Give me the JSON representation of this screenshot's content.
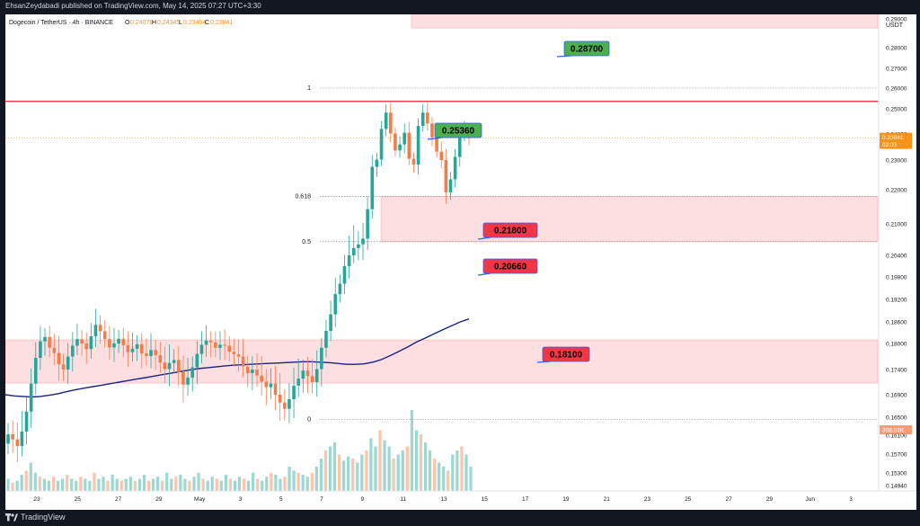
{
  "header": {
    "publisher": "EhsanZeydabadi published on TradingView.com, May 14, 2025 07:27 UTC+3:30"
  },
  "legend": {
    "symbol": "Dogecoin / TetherUS · 4h · BINANCE",
    "o_label": "O",
    "o_value": "0.24078",
    "h_label": "H",
    "h_value": "0.24345",
    "l_label": "L",
    "l_value": "0.23404",
    "c_label": "C",
    "c_value": "0.23841"
  },
  "footer": {
    "brand": "TradingView"
  },
  "chart_data": {
    "type": "candlestick",
    "currency": "USDT",
    "ylim": [
      0.1494,
      0.2988
    ],
    "y_ticks": [
      "0.29000",
      "0.28000",
      "0.27000",
      "0.26000",
      "0.25000",
      "0.24000",
      "0.23000",
      "0.22000",
      "0.21000",
      "0.20400",
      "0.19800",
      "0.19200",
      "0.18600",
      "0.18000",
      "0.17400",
      "0.16900",
      "0.16500",
      "0.16100",
      "0.15700",
      "0.15300",
      "0.14940"
    ],
    "x_ticks": [
      "23",
      "25",
      "27",
      "29",
      "May",
      "3",
      "5",
      "7",
      "9",
      "11",
      "13",
      "15",
      "17",
      "19",
      "21",
      "23",
      "25",
      "27",
      "29",
      "Jun",
      "3"
    ],
    "last_price": "0.23841",
    "countdown": "02:03",
    "volume_label": "308.84K",
    "fib_levels": [
      {
        "label": "1",
        "value": 0.26
      },
      {
        "label": "0.618",
        "value": 0.218
      },
      {
        "label": "0.5",
        "value": 0.2066
      },
      {
        "label": "0",
        "value": 0.1645
      }
    ],
    "horizontal_line": 0.2536,
    "zones": [
      {
        "from": 0.2868,
        "to": 0.2936
      },
      {
        "from": 0.2066,
        "to": 0.218
      },
      {
        "from": 0.1713,
        "to": 0.181
      }
    ],
    "callouts": [
      {
        "text": "0.28700",
        "color": "#4caf50"
      },
      {
        "text": "0.25360",
        "color": "#4caf50"
      },
      {
        "text": "0.21800",
        "color": "#f23645"
      },
      {
        "text": "0.20660",
        "color": "#f23645"
      },
      {
        "text": "0.18100",
        "color": "#f23645"
      }
    ],
    "candles_close": [
      0.1612,
      0.1601,
      0.1587,
      0.1618,
      0.166,
      0.1712,
      0.1767,
      0.1806,
      0.1818,
      0.179,
      0.1778,
      0.1752,
      0.174,
      0.177,
      0.1795,
      0.1812,
      0.18,
      0.1787,
      0.182,
      0.1852,
      0.1834,
      0.1812,
      0.1791,
      0.18,
      0.1813,
      0.1796,
      0.178,
      0.1788,
      0.1798,
      0.1777,
      0.1771,
      0.1785,
      0.1773,
      0.1756,
      0.1741,
      0.1755,
      0.1762,
      0.1735,
      0.171,
      0.1724,
      0.1745,
      0.1776,
      0.1797,
      0.1808,
      0.1803,
      0.179,
      0.1797,
      0.1795,
      0.1781,
      0.1775,
      0.177,
      0.1747,
      0.1733,
      0.174,
      0.1728,
      0.1716,
      0.1705,
      0.1712,
      0.169,
      0.1676,
      0.1665,
      0.1682,
      0.1708,
      0.1722,
      0.1738,
      0.1727,
      0.1715,
      0.1741,
      0.179,
      0.1835,
      0.188,
      0.1934,
      0.1962,
      0.201,
      0.204,
      0.2054,
      0.2061,
      0.2072,
      0.2143,
      0.2277,
      0.2302,
      0.242,
      0.2485,
      0.2402,
      0.2337,
      0.236,
      0.2405,
      0.2305,
      0.2285,
      0.2432,
      0.2485,
      0.2442,
      0.2387,
      0.2332,
      0.23,
      0.2192,
      0.2235,
      0.2312,
      0.2395,
      0.2408,
      0.2384
    ],
    "ema": [
      0.169,
      0.1688,
      0.1687,
      0.1686,
      0.1687,
      0.1689,
      0.1692,
      0.1696,
      0.17,
      0.1703,
      0.1706,
      0.1709,
      0.1712,
      0.1715,
      0.1718,
      0.1721,
      0.1724,
      0.1727,
      0.173,
      0.1733,
      0.1736,
      0.1739,
      0.1742,
      0.1744,
      0.1746,
      0.1748,
      0.175,
      0.1751,
      0.1752,
      0.1753,
      0.1754,
      0.1755,
      0.1756,
      0.1757,
      0.1758,
      0.1758,
      0.1757,
      0.1756,
      0.1754,
      0.1752,
      0.1752,
      0.1753,
      0.1757,
      0.1763,
      0.1772,
      0.1782,
      0.1792,
      0.1804,
      0.1815,
      0.1827,
      0.1838,
      0.1849,
      0.186,
      0.1868
    ],
    "volume": [
      6,
      4,
      5,
      8,
      10,
      14,
      9,
      7,
      6,
      5,
      7,
      5,
      6,
      8,
      6,
      5,
      7,
      6,
      5,
      9,
      6,
      7,
      5,
      8,
      6,
      5,
      6,
      7,
      5,
      6,
      8,
      5,
      6,
      7,
      5,
      9,
      6,
      7,
      8,
      6,
      5,
      7,
      9,
      6,
      5,
      7,
      6,
      5,
      8,
      6,
      5,
      7,
      6,
      5,
      9,
      6,
      5,
      7,
      9,
      8,
      6,
      7,
      12,
      10,
      9,
      8,
      7,
      9,
      12,
      16,
      20,
      22,
      24,
      18,
      15,
      17,
      16,
      14,
      18,
      20,
      26,
      22,
      30,
      25,
      22,
      16,
      18,
      20,
      22,
      40,
      30,
      28,
      24,
      20,
      16,
      14,
      12,
      10,
      18,
      20,
      22,
      18,
      12
    ]
  }
}
